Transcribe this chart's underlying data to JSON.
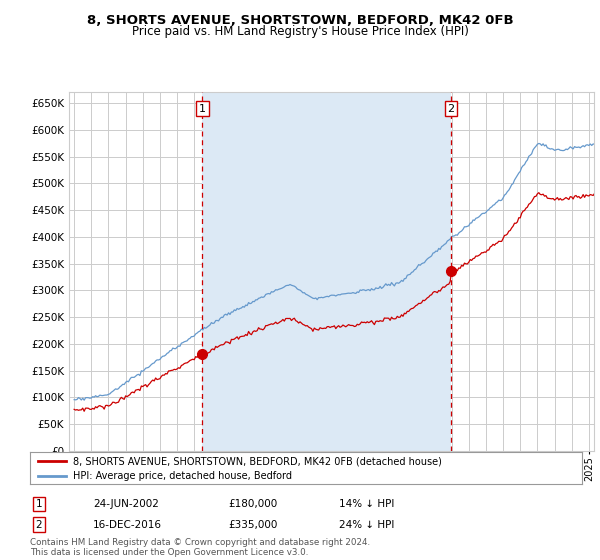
{
  "title": "8, SHORTS AVENUE, SHORTSTOWN, BEDFORD, MK42 0FB",
  "subtitle": "Price paid vs. HM Land Registry's House Price Index (HPI)",
  "ylim": [
    0,
    670000
  ],
  "yticks": [
    0,
    50000,
    100000,
    150000,
    200000,
    250000,
    300000,
    350000,
    400000,
    450000,
    500000,
    550000,
    600000,
    650000
  ],
  "xlim_start": 1994.7,
  "xlim_end": 2025.3,
  "purchase1_date": 2002.47,
  "purchase1_price": 180000,
  "purchase1_date_str": "24-JUN-2002",
  "purchase1_pct": "14% ↓ HPI",
  "purchase2_date": 2016.96,
  "purchase2_price": 335000,
  "purchase2_date_str": "16-DEC-2016",
  "purchase2_pct": "24% ↓ HPI",
  "legend_property": "8, SHORTS AVENUE, SHORTSTOWN, BEDFORD, MK42 0FB (detached house)",
  "legend_hpi": "HPI: Average price, detached house, Bedford",
  "footer": "Contains HM Land Registry data © Crown copyright and database right 2024.\nThis data is licensed under the Open Government Licence v3.0.",
  "line_color_red": "#cc0000",
  "line_color_blue": "#6699cc",
  "fill_color_blue": "#dce9f5",
  "background_color": "#ffffff",
  "grid_color": "#cccccc",
  "dashed_line_color": "#cc0000",
  "marker_color": "#cc0000",
  "title_fontsize": 9.5,
  "subtitle_fontsize": 8.5
}
